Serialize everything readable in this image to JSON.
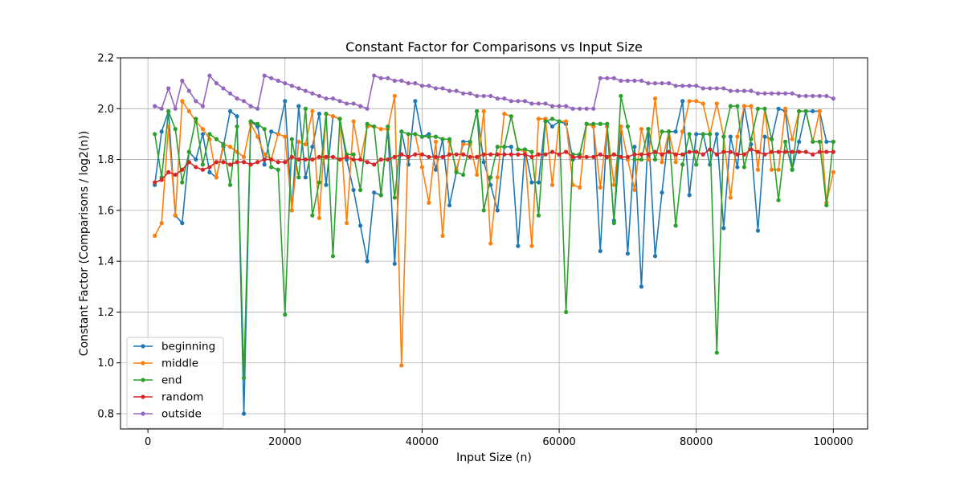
{
  "chart_data": {
    "type": "line",
    "title": "Constant Factor for Comparisons vs Input Size",
    "xlabel": "Input Size (n)",
    "ylabel": "Constant Factor (Comparisons / log2(n))",
    "xlim": [
      -4000,
      105000
    ],
    "ylim": [
      0.74,
      2.2
    ],
    "xticks": [
      0,
      20000,
      40000,
      60000,
      80000,
      100000
    ],
    "yticks": [
      0.8,
      1.0,
      1.2,
      1.4,
      1.6,
      1.8,
      2.0,
      2.2
    ],
    "grid": true,
    "legend_position": "lower-left",
    "x": [
      1000,
      2000,
      3000,
      4000,
      5000,
      6000,
      7000,
      8000,
      9000,
      10000,
      11000,
      12000,
      13000,
      14000,
      15000,
      16000,
      17000,
      18000,
      19000,
      20000,
      21000,
      22000,
      23000,
      24000,
      25000,
      26000,
      27000,
      28000,
      29000,
      30000,
      31000,
      32000,
      33000,
      34000,
      35000,
      36000,
      37000,
      38000,
      39000,
      40000,
      41000,
      42000,
      43000,
      44000,
      45000,
      46000,
      47000,
      48000,
      49000,
      50000,
      51000,
      52000,
      53000,
      54000,
      55000,
      56000,
      57000,
      58000,
      59000,
      60000,
      61000,
      62000,
      63000,
      64000,
      65000,
      66000,
      67000,
      68000,
      69000,
      70000,
      71000,
      72000,
      73000,
      74000,
      75000,
      76000,
      77000,
      78000,
      79000,
      80000,
      81000,
      82000,
      83000,
      84000,
      85000,
      86000,
      87000,
      88000,
      89000,
      90000,
      91000,
      92000,
      93000,
      94000,
      95000,
      96000,
      97000,
      98000,
      99000,
      100000
    ],
    "series": [
      {
        "name": "beginning",
        "color": "#1f77b4",
        "values": [
          1.7,
          1.91,
          1.99,
          1.58,
          1.55,
          1.83,
          1.8,
          1.9,
          1.75,
          1.73,
          1.85,
          1.99,
          1.97,
          0.8,
          1.95,
          1.93,
          1.78,
          1.91,
          1.9,
          2.03,
          1.6,
          2.01,
          1.73,
          1.85,
          1.98,
          1.7,
          1.97,
          1.96,
          1.8,
          1.68,
          1.54,
          1.4,
          1.67,
          1.66,
          1.92,
          1.39,
          1.91,
          1.78,
          2.03,
          1.89,
          1.9,
          1.76,
          1.88,
          1.62,
          1.75,
          1.87,
          1.87,
          1.99,
          1.79,
          1.7,
          1.6,
          1.85,
          1.85,
          1.46,
          1.84,
          1.71,
          1.71,
          1.96,
          1.93,
          1.95,
          1.94,
          1.8,
          1.82,
          1.94,
          1.93,
          1.44,
          1.93,
          1.56,
          1.91,
          1.43,
          1.85,
          1.3,
          1.92,
          1.42,
          1.67,
          1.91,
          1.91,
          2.03,
          1.66,
          1.9,
          1.9,
          1.78,
          1.9,
          1.53,
          1.89,
          1.77,
          2.01,
          1.86,
          1.52,
          1.89,
          1.88,
          2.0,
          1.99,
          1.76,
          1.87,
          1.99,
          1.99,
          1.99,
          1.87,
          1.87
        ]
      },
      {
        "name": "middle",
        "color": "#ff7f0e",
        "values": [
          1.5,
          1.55,
          1.93,
          1.58,
          2.03,
          1.99,
          1.95,
          1.92,
          1.88,
          1.73,
          1.86,
          1.85,
          1.83,
          1.81,
          1.94,
          1.89,
          1.82,
          1.8,
          1.9,
          1.89,
          1.6,
          1.87,
          1.86,
          1.99,
          1.57,
          1.98,
          1.97,
          1.96,
          1.55,
          1.95,
          1.8,
          1.93,
          1.93,
          1.92,
          1.92,
          2.05,
          0.99,
          1.9,
          1.9,
          1.77,
          1.63,
          1.87,
          1.5,
          1.87,
          1.76,
          1.86,
          1.86,
          1.74,
          1.99,
          1.47,
          1.73,
          1.98,
          1.97,
          1.84,
          1.83,
          1.46,
          1.96,
          1.96,
          1.7,
          1.95,
          1.95,
          1.7,
          1.69,
          1.94,
          1.93,
          1.69,
          1.93,
          1.7,
          1.93,
          1.8,
          1.68,
          1.92,
          1.8,
          2.04,
          1.79,
          1.91,
          1.79,
          1.91,
          2.03,
          2.03,
          2.02,
          1.9,
          2.02,
          1.89,
          1.65,
          1.89,
          2.01,
          2.01,
          1.76,
          2.0,
          1.76,
          1.76,
          2.0,
          1.88,
          1.99,
          1.99,
          1.87,
          1.99,
          1.63,
          1.75
        ]
      },
      {
        "name": "end",
        "color": "#2ca02c",
        "values": [
          1.9,
          1.73,
          1.99,
          1.92,
          1.71,
          1.83,
          1.96,
          1.78,
          1.9,
          1.88,
          1.86,
          1.7,
          1.93,
          0.94,
          1.95,
          1.94,
          1.92,
          1.77,
          1.76,
          1.19,
          1.88,
          1.73,
          2.0,
          1.58,
          1.71,
          1.98,
          1.42,
          1.96,
          1.82,
          1.82,
          1.68,
          1.94,
          1.93,
          1.66,
          1.93,
          1.65,
          1.91,
          1.9,
          1.9,
          1.89,
          1.89,
          1.89,
          1.88,
          1.88,
          1.75,
          1.74,
          1.87,
          1.99,
          1.6,
          1.73,
          1.85,
          1.85,
          1.97,
          1.84,
          1.84,
          1.83,
          1.58,
          1.95,
          1.96,
          1.95,
          1.2,
          1.82,
          1.82,
          1.94,
          1.94,
          1.94,
          1.94,
          1.55,
          2.05,
          1.93,
          1.8,
          1.8,
          1.92,
          1.8,
          1.91,
          1.91,
          1.54,
          1.78,
          1.9,
          1.78,
          1.9,
          1.9,
          1.04,
          1.89,
          2.01,
          2.01,
          1.77,
          1.88,
          2.0,
          2.0,
          1.88,
          1.64,
          1.87,
          1.76,
          1.99,
          1.99,
          1.87,
          1.87,
          1.62,
          1.87
        ]
      },
      {
        "name": "random",
        "color": "#d62728",
        "values": [
          1.71,
          1.72,
          1.75,
          1.74,
          1.76,
          1.79,
          1.77,
          1.76,
          1.77,
          1.79,
          1.79,
          1.78,
          1.79,
          1.79,
          1.78,
          1.79,
          1.8,
          1.8,
          1.79,
          1.79,
          1.81,
          1.8,
          1.8,
          1.8,
          1.81,
          1.81,
          1.81,
          1.8,
          1.81,
          1.8,
          1.8,
          1.79,
          1.78,
          1.8,
          1.8,
          1.81,
          1.82,
          1.81,
          1.82,
          1.82,
          1.81,
          1.81,
          1.81,
          1.82,
          1.82,
          1.82,
          1.81,
          1.81,
          1.82,
          1.82,
          1.82,
          1.82,
          1.82,
          1.82,
          1.82,
          1.81,
          1.82,
          1.82,
          1.83,
          1.82,
          1.83,
          1.81,
          1.81,
          1.81,
          1.81,
          1.82,
          1.81,
          1.82,
          1.81,
          1.81,
          1.82,
          1.82,
          1.82,
          1.83,
          1.82,
          1.83,
          1.82,
          1.82,
          1.83,
          1.83,
          1.82,
          1.84,
          1.82,
          1.83,
          1.83,
          1.82,
          1.82,
          1.84,
          1.83,
          1.82,
          1.83,
          1.83,
          1.83,
          1.83,
          1.83,
          1.83,
          1.82,
          1.83,
          1.83,
          1.83
        ]
      },
      {
        "name": "outside",
        "color": "#9467bd",
        "values": [
          2.01,
          2.0,
          2.08,
          2.0,
          2.11,
          2.07,
          2.03,
          2.01,
          2.13,
          2.1,
          2.08,
          2.06,
          2.04,
          2.03,
          2.01,
          2.0,
          2.13,
          2.12,
          2.11,
          2.1,
          2.09,
          2.08,
          2.07,
          2.06,
          2.05,
          2.04,
          2.04,
          2.03,
          2.02,
          2.02,
          2.01,
          2.0,
          2.13,
          2.12,
          2.12,
          2.11,
          2.11,
          2.1,
          2.1,
          2.09,
          2.09,
          2.08,
          2.08,
          2.07,
          2.07,
          2.06,
          2.06,
          2.05,
          2.05,
          2.05,
          2.04,
          2.04,
          2.03,
          2.03,
          2.03,
          2.02,
          2.02,
          2.02,
          2.01,
          2.01,
          2.01,
          2.0,
          2.0,
          2.0,
          2.0,
          2.12,
          2.12,
          2.12,
          2.11,
          2.11,
          2.11,
          2.11,
          2.1,
          2.1,
          2.1,
          2.1,
          2.09,
          2.09,
          2.09,
          2.09,
          2.08,
          2.08,
          2.08,
          2.08,
          2.07,
          2.07,
          2.07,
          2.07,
          2.06,
          2.06,
          2.06,
          2.06,
          2.06,
          2.06,
          2.05,
          2.05,
          2.05,
          2.05,
          2.05,
          2.04
        ]
      }
    ]
  }
}
